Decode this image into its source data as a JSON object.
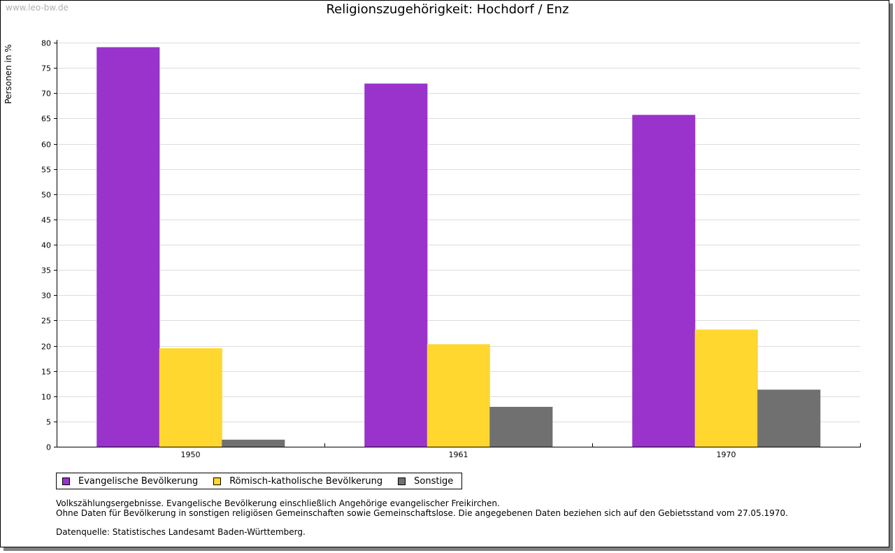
{
  "watermark": "www.leo-bw.de",
  "chart_data": {
    "type": "bar",
    "title": "Religionszugehörigkeit: Hochdorf / Enz",
    "xlabel": "",
    "ylabel": "Personen in %",
    "ylim": [
      0,
      80
    ],
    "yticks": [
      0,
      5,
      10,
      15,
      20,
      25,
      30,
      35,
      40,
      45,
      50,
      55,
      60,
      65,
      70,
      75,
      80
    ],
    "grid": true,
    "legend_position": "bottom-left",
    "categories": [
      "1950",
      "1961",
      "1970"
    ],
    "series": [
      {
        "name": "Evangelische Bevölkerung",
        "color": "#9933cc",
        "values": [
          79.1,
          71.9,
          65.7
        ]
      },
      {
        "name": "Römisch-katholische Bevölkerung",
        "color": "#ffd72f",
        "values": [
          19.5,
          20.3,
          23.2
        ]
      },
      {
        "name": "Sonstige",
        "color": "#707070",
        "values": [
          1.4,
          7.9,
          11.3
        ]
      }
    ]
  },
  "notes": {
    "line1": "Volkszählungsergebnisse. Evangelische Bevölkerung einschließlich Angehörige evangelischer Freikirchen.",
    "line2": "Ohne Daten für Bevölkerung in sonstigen religiösen Gemeinschaften sowie Gemeinschaftslose. Die angegebenen Daten beziehen sich auf den Gebietsstand vom 27.05.1970.",
    "source": "Datenquelle: Statistisches Landesamt Baden-Württemberg."
  }
}
